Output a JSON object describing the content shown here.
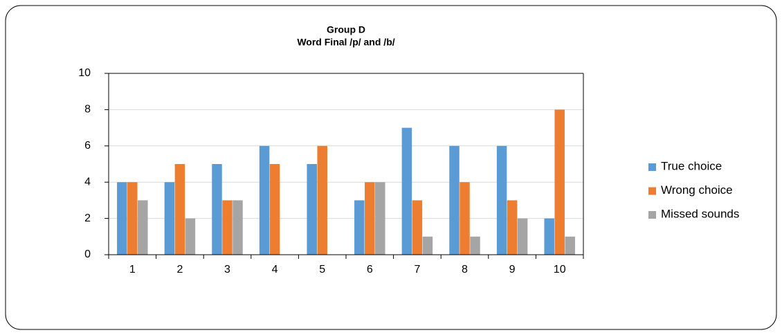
{
  "chart_data": {
    "type": "bar",
    "title": "Group D",
    "subtitle": "Word Final /p/ and /b/",
    "categories": [
      "1",
      "2",
      "3",
      "4",
      "5",
      "6",
      "7",
      "8",
      "9",
      "10"
    ],
    "series": [
      {
        "name": "True choice",
        "color": "#5b9bd5",
        "values": [
          4,
          4,
          5,
          6,
          5,
          3,
          7,
          6,
          6,
          2
        ]
      },
      {
        "name": "Wrong choice",
        "color": "#ed7d31",
        "values": [
          4,
          5,
          3,
          5,
          6,
          4,
          3,
          4,
          3,
          8
        ]
      },
      {
        "name": "Missed sounds",
        "color": "#a5a5a5",
        "values": [
          3,
          2,
          3,
          0,
          0,
          4,
          1,
          1,
          2,
          1
        ]
      }
    ],
    "ylim": [
      0,
      10
    ],
    "yticks": [
      0,
      2,
      4,
      6,
      8,
      10
    ],
    "grid": true,
    "legend": "right"
  }
}
